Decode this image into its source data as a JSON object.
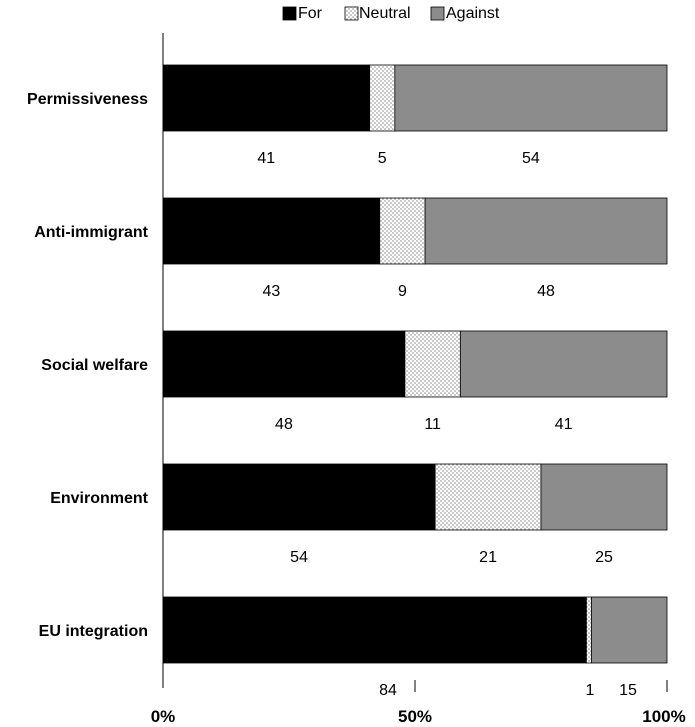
{
  "chart_data": {
    "type": "bar",
    "orientation": "horizontal",
    "stacked": true,
    "categories": [
      "Permissiveness",
      "Anti-immigrant",
      "Social welfare",
      "Environment",
      "EU integration"
    ],
    "series": [
      {
        "name": "For",
        "values": [
          41,
          43,
          48,
          54,
          84
        ],
        "color": "#000000",
        "pattern": "solid"
      },
      {
        "name": "Neutral",
        "values": [
          5,
          9,
          11,
          21,
          1
        ],
        "color": "#ffffff",
        "pattern": "dotted"
      },
      {
        "name": "Against",
        "values": [
          54,
          48,
          41,
          25,
          15
        ],
        "color": "#8c8c8c",
        "pattern": "solid"
      }
    ],
    "x_ticks": [
      "0%",
      "50%",
      "100%"
    ],
    "xlim": [
      0,
      100
    ],
    "grid": false,
    "legend_position": "top-center",
    "title": "",
    "xlabel": "",
    "ylabel": ""
  }
}
